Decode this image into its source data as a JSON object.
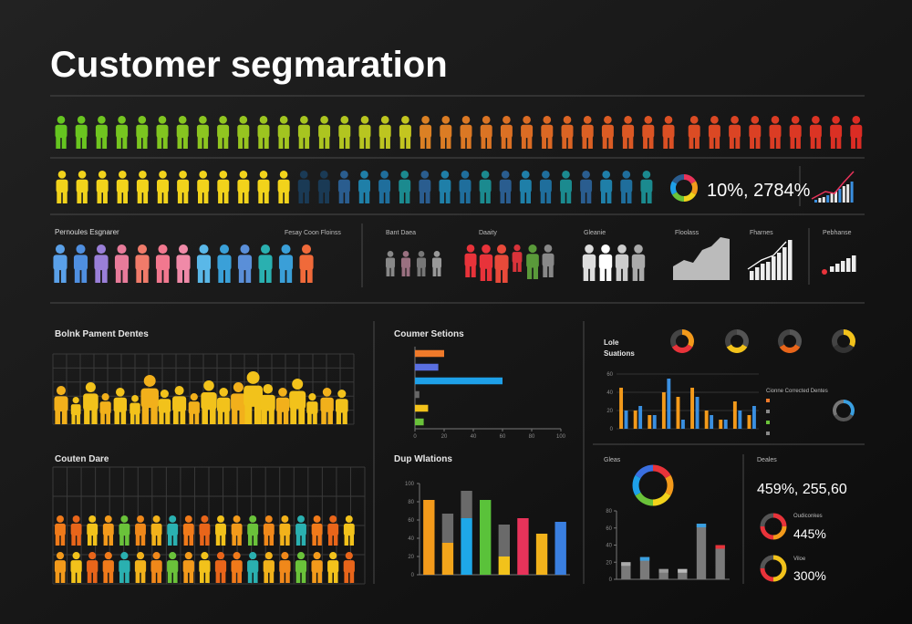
{
  "header": {
    "title": "Customer segmaration"
  },
  "kpi": {
    "value": "10%, 2784%"
  },
  "segments": {
    "title": "Pernoules Esgnarer",
    "subtitle": "Fesay Coon Floinss",
    "groups": [
      "Bant Daea",
      "Daaity",
      "Gleanie",
      "Floolass",
      "Fharnes",
      "Pebhanse"
    ]
  },
  "panels": {
    "people_top": "Bolnk Pament Dentes",
    "people_bottom": "Couten Dare",
    "side_title": "Lole",
    "side_subtitle": "Suations",
    "side_note": "Cionne Corrected Dentes",
    "ring_title": "Gleas"
  },
  "deals": {
    "title": "Deales",
    "total": "459%, 255,60",
    "items": [
      {
        "label": "Oudiconkes",
        "value": "445%"
      },
      {
        "label": "Viloe",
        "value": "300%"
      }
    ]
  },
  "chart_data": [
    {
      "type": "hbar",
      "title": "Coumer Setions",
      "values": [
        20,
        16,
        60,
        3,
        9,
        6
      ],
      "colors": [
        "#f07a2a",
        "#5a6fe0",
        "#1ea0e8",
        "#666666",
        "#f2c21b",
        "#6ac23a"
      ],
      "xlim": [
        0,
        100
      ],
      "xticks": [
        0,
        20,
        40,
        60,
        80,
        100
      ]
    },
    {
      "type": "stacked-bar",
      "title": "Dup Wlations",
      "series": [
        {
          "values": [
            82,
            35,
            62,
            82,
            20,
            62,
            45,
            58
          ],
          "colors": [
            "#f39a1b",
            "#f3a51b",
            "#1ea8e8",
            "#5ac23a",
            "#f2c21b",
            "#e8335a",
            "#f2b21b",
            "#3a7fe0"
          ]
        },
        {
          "values": [
            0,
            32,
            30,
            0,
            35,
            0,
            0,
            0
          ],
          "color": "#6a6a6a"
        }
      ],
      "ylim": [
        0,
        100
      ],
      "yticks": [
        0,
        20,
        40,
        60,
        80,
        100
      ]
    },
    {
      "type": "grouped-bar",
      "series": [
        {
          "color": "#f39a1b",
          "values": [
            45,
            20,
            15,
            40,
            35,
            45,
            20,
            10,
            30,
            15
          ]
        },
        {
          "color": "#3a8fe0",
          "values": [
            20,
            25,
            15,
            55,
            10,
            35,
            15,
            10,
            20,
            25
          ]
        }
      ],
      "ylim": [
        0,
        60
      ],
      "yticks": [
        0,
        20,
        40,
        60
      ]
    },
    {
      "type": "bar",
      "values": [
        20,
        26,
        12,
        12,
        65,
        40
      ],
      "color": "#7a7a7a",
      "ylim": [
        0,
        80
      ],
      "yticks": [
        0,
        20,
        40,
        60,
        80
      ]
    }
  ]
}
